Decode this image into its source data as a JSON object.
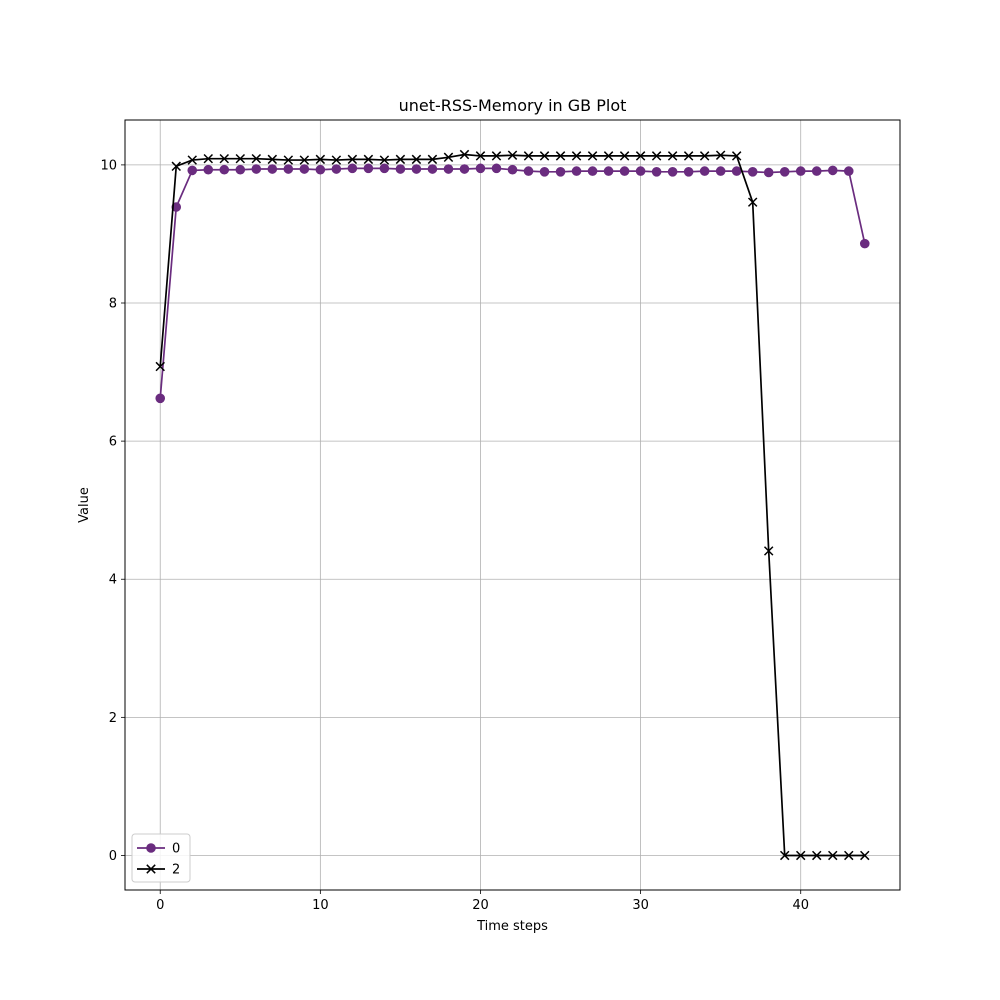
{
  "chart_data": {
    "type": "line",
    "title": "unet-RSS-Memory in GB Plot",
    "xlabel": "Time steps",
    "ylabel": "Value",
    "xlim": [
      -2.2,
      46.2
    ],
    "ylim": [
      -0.5,
      10.65
    ],
    "xticks": [
      0,
      10,
      20,
      30,
      40
    ],
    "yticks": [
      0,
      2,
      4,
      6,
      8,
      10
    ],
    "xtick_labels": [
      "0",
      "10",
      "20",
      "30",
      "40"
    ],
    "ytick_labels": [
      "0",
      "2",
      "4",
      "6",
      "8",
      "10"
    ],
    "grid": true,
    "legend_position": "lower-left",
    "series": [
      {
        "name": "0",
        "color": "#6a2c7f",
        "marker": "circle",
        "x": [
          0,
          1,
          2,
          3,
          4,
          5,
          6,
          7,
          8,
          9,
          10,
          11,
          12,
          13,
          14,
          15,
          16,
          17,
          18,
          19,
          20,
          21,
          22,
          23,
          24,
          25,
          26,
          27,
          28,
          29,
          30,
          31,
          32,
          33,
          34,
          35,
          36,
          37,
          38,
          39,
          40,
          41,
          42,
          43,
          44
        ],
        "values": [
          6.62,
          9.39,
          9.92,
          9.93,
          9.93,
          9.93,
          9.94,
          9.94,
          9.94,
          9.94,
          9.93,
          9.94,
          9.95,
          9.95,
          9.95,
          9.94,
          9.94,
          9.94,
          9.94,
          9.94,
          9.95,
          9.95,
          9.93,
          9.91,
          9.9,
          9.9,
          9.91,
          9.91,
          9.91,
          9.91,
          9.91,
          9.9,
          9.9,
          9.9,
          9.91,
          9.91,
          9.91,
          9.9,
          9.89,
          9.9,
          9.91,
          9.91,
          9.92,
          9.91,
          8.86
        ]
      },
      {
        "name": "2",
        "color": "#000000",
        "marker": "x",
        "x": [
          0,
          1,
          2,
          3,
          4,
          5,
          6,
          7,
          8,
          9,
          10,
          11,
          12,
          13,
          14,
          15,
          16,
          17,
          18,
          19,
          20,
          21,
          22,
          23,
          24,
          25,
          26,
          27,
          28,
          29,
          30,
          31,
          32,
          33,
          34,
          35,
          36,
          37,
          38,
          39,
          40,
          41,
          42,
          43,
          44
        ],
        "values": [
          7.08,
          9.98,
          10.07,
          10.09,
          10.09,
          10.09,
          10.09,
          10.08,
          10.07,
          10.07,
          10.08,
          10.07,
          10.08,
          10.08,
          10.07,
          10.08,
          10.08,
          10.08,
          10.11,
          10.15,
          10.13,
          10.13,
          10.14,
          10.13,
          10.13,
          10.13,
          10.13,
          10.13,
          10.13,
          10.13,
          10.13,
          10.13,
          10.13,
          10.13,
          10.13,
          10.14,
          10.13,
          9.46,
          4.41,
          0,
          0,
          0,
          0,
          0,
          0
        ]
      }
    ]
  }
}
